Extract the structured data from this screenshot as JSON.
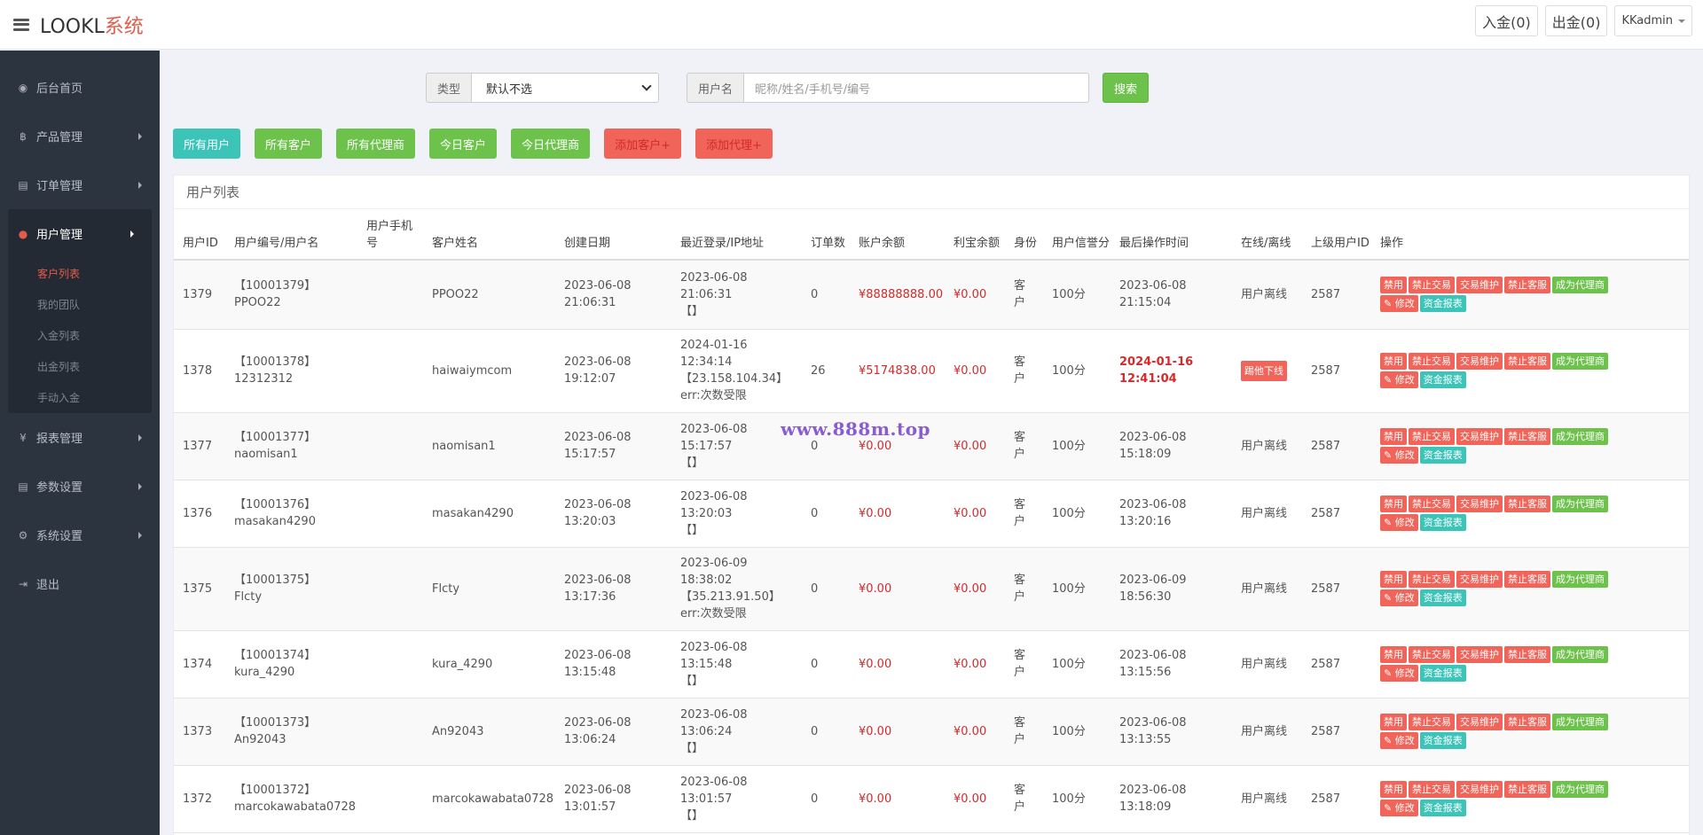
{
  "header": {
    "logo_main": "LOOKL",
    "logo_accent": "系统",
    "deposit": "入金(0)",
    "withdraw": "出金(0)",
    "user": "KKadmin"
  },
  "sidebar": {
    "items": [
      {
        "label": "后台首页",
        "icon": "dashboard-icon",
        "glyph": "◉"
      },
      {
        "label": "产品管理",
        "icon": "bitcoin-icon",
        "glyph": "฿"
      },
      {
        "label": "订单管理",
        "icon": "copy-icon",
        "glyph": "▤"
      },
      {
        "label": "报表管理",
        "icon": "yen-icon",
        "glyph": "¥"
      },
      {
        "label": "参数设置",
        "icon": "copy-icon",
        "glyph": "▤"
      },
      {
        "label": "系统设置",
        "icon": "gears-icon",
        "glyph": "⚙"
      },
      {
        "label": "退出",
        "icon": "sign-out-icon",
        "glyph": "⇥"
      }
    ],
    "active_group": {
      "label": "用户管理",
      "icon": "user-icon",
      "glyph": "●",
      "subitems": [
        "客户列表",
        "我的团队",
        "入金列表",
        "出金列表",
        "手动入金"
      ]
    }
  },
  "search": {
    "type_label": "类型",
    "type_value": "默认不选",
    "user_label": "用户名",
    "user_placeholder": "昵称/姓名/手机号/编号",
    "search_button": "搜索"
  },
  "filters": [
    "所有用户",
    "所有客户",
    "所有代理商",
    "今日客户",
    "今日代理商",
    "添加客户+",
    "添加代理+"
  ],
  "panel_title": "用户列表",
  "table": {
    "headers": [
      "用户ID",
      "用户编号/用户名",
      "用户手机号",
      "客户姓名",
      "创建日期",
      "最近登录/IP地址",
      "订单数",
      "账户余额",
      "利宝余额",
      "身份",
      "用户信誉分",
      "最后操作时间",
      "在线/离线",
      "上级用户ID",
      "操作"
    ],
    "rows": [
      {
        "id": "1379",
        "code": "【10001379】",
        "username": "PPOO22",
        "phone": "",
        "name": "PPOO22",
        "created_date": "2023-06-08",
        "created_time": "21:06:31",
        "login_date": "2023-06-08",
        "login_time": "21:06:31",
        "login_ip": "【】",
        "login_err": "",
        "orders": "0",
        "balance": "¥88888888.00",
        "lbao": "¥0.00",
        "role1": "客",
        "role2": "户",
        "credit": "100分",
        "last_date": "2023-06-08",
        "last_time": "21:15:04",
        "status": "用户离线",
        "parent": "2587"
      },
      {
        "id": "1378",
        "code": "【10001378】",
        "username": "12312312",
        "phone": "",
        "name": "haiwaiymcom",
        "created_date": "2023-06-08",
        "created_time": "19:12:07",
        "login_date": "2024-01-16",
        "login_time": "12:34:14",
        "login_ip": "【23.158.104.34】",
        "login_err": "err:次数受限",
        "orders": "26",
        "balance": "¥5174838.00",
        "lbao": "¥0.00",
        "role1": "客",
        "role2": "户",
        "credit": "100分",
        "last_date": "2024-01-16",
        "last_time": "12:41:04",
        "status": "踢他下线",
        "parent": "2587"
      },
      {
        "id": "1377",
        "code": "【10001377】",
        "username": "naomisan1",
        "phone": "",
        "name": "naomisan1",
        "created_date": "2023-06-08",
        "created_time": "15:17:57",
        "login_date": "2023-06-08",
        "login_time": "15:17:57",
        "login_ip": "【】",
        "login_err": "",
        "orders": "0",
        "balance": "¥0.00",
        "lbao": "¥0.00",
        "role1": "客",
        "role2": "户",
        "credit": "100分",
        "last_date": "2023-06-08",
        "last_time": "15:18:09",
        "status": "用户离线",
        "parent": "2587"
      },
      {
        "id": "1376",
        "code": "【10001376】",
        "username": "masakan4290",
        "phone": "",
        "name": "masakan4290",
        "created_date": "2023-06-08",
        "created_time": "13:20:03",
        "login_date": "2023-06-08",
        "login_time": "13:20:03",
        "login_ip": "【】",
        "login_err": "",
        "orders": "0",
        "balance": "¥0.00",
        "lbao": "¥0.00",
        "role1": "客",
        "role2": "户",
        "credit": "100分",
        "last_date": "2023-06-08",
        "last_time": "13:20:16",
        "status": "用户离线",
        "parent": "2587"
      },
      {
        "id": "1375",
        "code": "【10001375】",
        "username": "Flcty",
        "phone": "",
        "name": "Flcty",
        "created_date": "2023-06-08",
        "created_time": "13:17:36",
        "login_date": "2023-06-09",
        "login_time": "18:38:02",
        "login_ip": "【35.213.91.50】",
        "login_err": "err:次数受限",
        "orders": "0",
        "balance": "¥0.00",
        "lbao": "¥0.00",
        "role1": "客",
        "role2": "户",
        "credit": "100分",
        "last_date": "2023-06-09",
        "last_time": "18:56:30",
        "status": "用户离线",
        "parent": "2587"
      },
      {
        "id": "1374",
        "code": "【10001374】",
        "username": "kura_4290",
        "phone": "",
        "name": "kura_4290",
        "created_date": "2023-06-08",
        "created_time": "13:15:48",
        "login_date": "2023-06-08",
        "login_time": "13:15:48",
        "login_ip": "【】",
        "login_err": "",
        "orders": "0",
        "balance": "¥0.00",
        "lbao": "¥0.00",
        "role1": "客",
        "role2": "户",
        "credit": "100分",
        "last_date": "2023-06-08",
        "last_time": "13:15:56",
        "status": "用户离线",
        "parent": "2587"
      },
      {
        "id": "1373",
        "code": "【10001373】",
        "username": "An92043",
        "phone": "",
        "name": "An92043",
        "created_date": "2023-06-08",
        "created_time": "13:06:24",
        "login_date": "2023-06-08",
        "login_time": "13:06:24",
        "login_ip": "【】",
        "login_err": "",
        "orders": "0",
        "balance": "¥0.00",
        "lbao": "¥0.00",
        "role1": "客",
        "role2": "户",
        "credit": "100分",
        "last_date": "2023-06-08",
        "last_time": "13:13:55",
        "status": "用户离线",
        "parent": "2587"
      },
      {
        "id": "1372",
        "code": "【10001372】",
        "username": "marcokawabata0728",
        "phone": "",
        "name": "marcokawabata0728",
        "created_date": "2023-06-08",
        "created_time": "13:01:57",
        "login_date": "2023-06-08",
        "login_time": "13:01:57",
        "login_ip": "【】",
        "login_err": "",
        "orders": "0",
        "balance": "¥0.00",
        "lbao": "¥0.00",
        "role1": "客",
        "role2": "户",
        "credit": "100分",
        "last_date": "2023-06-08",
        "last_time": "13:18:09",
        "status": "用户离线",
        "parent": "2587"
      }
    ],
    "actions": [
      "禁用",
      "禁止交易",
      "交易维护",
      "禁止客服",
      "成为代理商"
    ],
    "edit_label": "修改",
    "fund_label": "资金报表"
  },
  "watermark": "www.888m.top",
  "colors": {
    "accent": "#e35c4a",
    "teal": "#3cc4b9",
    "green": "#6cc24a",
    "red": "#f0645a",
    "sidebar": "#2c343f"
  }
}
